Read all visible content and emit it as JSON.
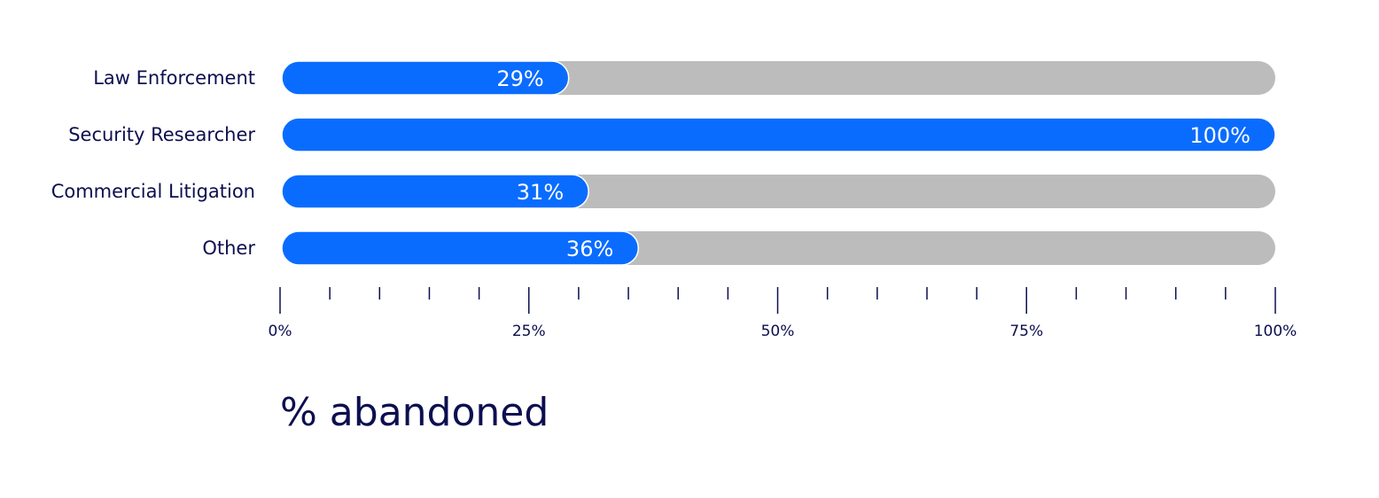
{
  "chart_data": {
    "type": "bar",
    "orientation": "horizontal",
    "categories": [
      "Law Enforcement",
      "Security Researcher",
      "Commercial Litigation",
      "Other"
    ],
    "values": [
      29,
      100,
      31,
      36
    ],
    "value_labels": [
      "29%",
      "100%",
      "31%",
      "36%"
    ],
    "title": "",
    "xlabel": "% abandoned",
    "ylabel": "",
    "xlim": [
      0,
      100
    ],
    "x_ticks": [
      0,
      25,
      50,
      75,
      100
    ],
    "x_tick_labels": [
      "0%",
      "25%",
      "50%",
      "75%",
      "100%"
    ],
    "minor_tick_step": 5,
    "grid": false,
    "legend": "none",
    "colors": {
      "bar": "#0a6cff",
      "track": "#bcbcbc",
      "text_dark": "#0c0f4f",
      "text_light": "#ffffff",
      "axis": "#0c0f4f"
    }
  }
}
